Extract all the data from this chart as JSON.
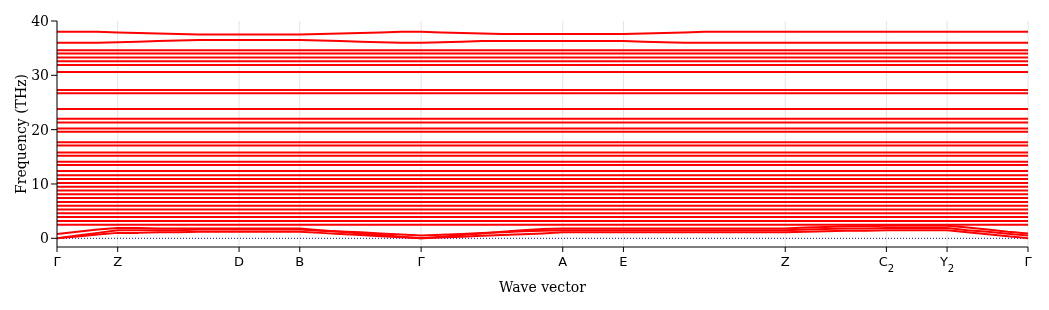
{
  "chart_data": {
    "type": "line",
    "xlabel": "Wave vector",
    "ylabel": "Frequency (THz)",
    "categories": [
      "Γ",
      null,
      null,
      "Z",
      null,
      null,
      null,
      null,
      null,
      "D",
      null,
      null,
      "B",
      null,
      null,
      null,
      null,
      null,
      "Γ",
      null,
      null,
      null,
      null,
      null,
      null,
      "A",
      null,
      null,
      "E",
      null,
      null,
      null,
      null,
      null,
      null,
      null,
      "Z",
      null,
      null,
      null,
      null,
      "C$_{2}$",
      null,
      null,
      "Y$_{2}$",
      null,
      null,
      null,
      "Γ"
    ],
    "ylim": [
      -1.6,
      40
    ],
    "yticks": [
      0,
      10,
      20,
      30,
      40
    ],
    "grid": "x",
    "marker": "none",
    "line_style": "solid",
    "ref_lines": [
      {
        "axis": "y",
        "value": 0,
        "color": "#0000ff",
        "line_style": "dotted"
      }
    ],
    "series": [
      {
        "color": "#ff0000",
        "values": [
          0,
          0.35,
          0.7,
          1.0,
          1.0,
          1.1,
          1.1,
          1.2,
          1.2,
          1.2,
          1.2,
          1.2,
          1.2,
          1.0,
          0.8,
          0.6,
          0.4,
          0.2,
          0,
          0.15,
          0.3,
          0.45,
          0.6,
          0.75,
          0.9,
          1.1,
          1.1,
          1.1,
          1.1,
          1.1,
          1.1,
          1.1,
          1.1,
          1.1,
          1.1,
          1.1,
          1.1,
          1.2,
          1.3,
          1.4,
          1.4,
          1.5,
          1.5,
          1.5,
          1.5,
          1.1,
          0.75,
          0.4,
          0
        ]
      },
      {
        "color": "#ff0000",
        "values": [
          0,
          0.5,
          1.0,
          1.5,
          1.5,
          1.5,
          1.5,
          1.6,
          1.6,
          1.6,
          1.6,
          1.6,
          1.6,
          1.4,
          1.25,
          1.1,
          0.9,
          0.7,
          0.5,
          0.65,
          0.8,
          1.0,
          1.1,
          1.3,
          1.4,
          1.5,
          1.5,
          1.5,
          1.5,
          1.5,
          1.5,
          1.5,
          1.5,
          1.5,
          1.5,
          1.5,
          1.5,
          1.6,
          1.7,
          1.8,
          1.8,
          1.9,
          1.9,
          1.9,
          1.9,
          1.5,
          1.2,
          0.85,
          0.5
        ]
      },
      {
        "color": "#ff0000",
        "values": [
          0.8,
          1.2,
          1.6,
          1.9,
          1.9,
          1.8,
          1.8,
          1.8,
          1.8,
          1.8,
          1.8,
          1.8,
          1.8,
          1.5,
          1.2,
          0.9,
          0.6,
          0.3,
          0,
          0.3,
          0.6,
          0.9,
          1.2,
          1.5,
          1.7,
          1.8,
          1.8,
          1.8,
          1.8,
          1.8,
          1.8,
          1.8,
          1.8,
          1.8,
          1.8,
          1.8,
          1.8,
          2.0,
          2.1,
          2.2,
          2.2,
          2.3,
          2.3,
          2.3,
          2.3,
          2.0,
          1.6,
          1.2,
          0.9
        ]
      },
      {
        "color": "#ff0000",
        "values": [
          2.5,
          2.5,
          2.5,
          2.5,
          2.5,
          2.5,
          2.5,
          2.5,
          2.5,
          2.5,
          2.5,
          2.5,
          2.5,
          2.5,
          2.5,
          2.5,
          2.5,
          2.5,
          2.5,
          2.5,
          2.5,
          2.5,
          2.5,
          2.5,
          2.5,
          2.5,
          2.5,
          2.5,
          2.5,
          2.5,
          2.5,
          2.5,
          2.5,
          2.5,
          2.5,
          2.5,
          2.5,
          2.5,
          2.5,
          2.5,
          2.5,
          2.5,
          2.5,
          2.5,
          2.5,
          2.5,
          2.5,
          2.5,
          2.5
        ]
      },
      {
        "color": "#ff0000",
        "values": [
          3.2,
          3.2,
          3.2,
          3.2,
          3.2,
          3.2,
          3.2,
          3.2,
          3.2,
          3.2,
          3.2,
          3.2,
          3.2,
          3.2,
          3.2,
          3.2,
          3.2,
          3.2,
          3.2,
          3.2,
          3.2,
          3.2,
          3.2,
          3.2,
          3.2,
          3.2,
          3.2,
          3.2,
          3.2,
          3.2,
          3.2,
          3.2,
          3.2,
          3.2,
          3.2,
          3.2,
          3.2,
          3.2,
          3.2,
          3.2,
          3.2,
          3.2,
          3.2,
          3.2,
          3.2,
          3.2,
          3.2,
          3.2,
          3.2
        ]
      },
      {
        "color": "#ff0000",
        "values": [
          3.9,
          3.9,
          3.9,
          3.9,
          3.9,
          3.9,
          3.9,
          3.9,
          3.9,
          3.9,
          3.9,
          3.9,
          3.9,
          3.9,
          3.9,
          3.9,
          3.9,
          3.9,
          3.9,
          3.9,
          3.9,
          3.9,
          3.9,
          3.9,
          3.9,
          3.9,
          3.9,
          3.9,
          3.9,
          3.9,
          3.9,
          3.9,
          3.9,
          3.9,
          3.9,
          3.9,
          3.9,
          3.9,
          3.9,
          3.9,
          3.9,
          3.9,
          3.9,
          3.9,
          3.9,
          3.9,
          3.9,
          3.9,
          3.9
        ]
      },
      {
        "color": "#ff0000",
        "values": [
          4.6,
          4.6,
          4.6,
          4.6,
          4.6,
          4.6,
          4.6,
          4.6,
          4.6,
          4.6,
          4.6,
          4.6,
          4.6,
          4.6,
          4.6,
          4.6,
          4.6,
          4.6,
          4.6,
          4.6,
          4.6,
          4.6,
          4.6,
          4.6,
          4.6,
          4.6,
          4.6,
          4.6,
          4.6,
          4.6,
          4.6,
          4.6,
          4.6,
          4.6,
          4.6,
          4.6,
          4.6,
          4.6,
          4.6,
          4.6,
          4.6,
          4.6,
          4.6,
          4.6,
          4.6,
          4.6,
          4.6,
          4.6,
          4.6
        ]
      },
      {
        "color": "#ff0000",
        "values": [
          5.3,
          5.3,
          5.3,
          5.3,
          5.3,
          5.3,
          5.3,
          5.3,
          5.3,
          5.3,
          5.3,
          5.3,
          5.3,
          5.3,
          5.3,
          5.3,
          5.3,
          5.3,
          5.3,
          5.3,
          5.3,
          5.3,
          5.3,
          5.3,
          5.3,
          5.3,
          5.3,
          5.3,
          5.3,
          5.3,
          5.3,
          5.3,
          5.3,
          5.3,
          5.3,
          5.3,
          5.3,
          5.3,
          5.3,
          5.3,
          5.3,
          5.3,
          5.3,
          5.3,
          5.3,
          5.3,
          5.3,
          5.3,
          5.3
        ]
      },
      {
        "color": "#ff0000",
        "values": [
          6.0,
          6.0,
          6.0,
          6.0,
          6.0,
          6.0,
          6.0,
          6.0,
          6.0,
          6.0,
          6.0,
          6.0,
          6.0,
          6.0,
          6.0,
          6.0,
          6.0,
          6.0,
          6.0,
          6.0,
          6.0,
          6.0,
          6.0,
          6.0,
          6.0,
          6.0,
          6.0,
          6.0,
          6.0,
          6.0,
          6.0,
          6.0,
          6.0,
          6.0,
          6.0,
          6.0,
          6.0,
          6.0,
          6.0,
          6.0,
          6.0,
          6.0,
          6.0,
          6.0,
          6.0,
          6.0,
          6.0,
          6.0,
          6.0
        ]
      },
      {
        "color": "#ff0000",
        "values": [
          6.7,
          6.7,
          6.7,
          6.7,
          6.7,
          6.7,
          6.7,
          6.7,
          6.7,
          6.7,
          6.7,
          6.7,
          6.7,
          6.7,
          6.7,
          6.7,
          6.7,
          6.7,
          6.7,
          6.7,
          6.7,
          6.7,
          6.7,
          6.7,
          6.7,
          6.7,
          6.7,
          6.7,
          6.7,
          6.7,
          6.7,
          6.7,
          6.7,
          6.7,
          6.7,
          6.7,
          6.7,
          6.7,
          6.7,
          6.7,
          6.7,
          6.7,
          6.7,
          6.7,
          6.7,
          6.7,
          6.7,
          6.7,
          6.7
        ]
      },
      {
        "color": "#ff0000",
        "values": [
          7.4,
          7.4,
          7.4,
          7.4,
          7.4,
          7.4,
          7.4,
          7.4,
          7.4,
          7.4,
          7.4,
          7.4,
          7.4,
          7.4,
          7.4,
          7.4,
          7.4,
          7.4,
          7.4,
          7.4,
          7.4,
          7.4,
          7.4,
          7.4,
          7.4,
          7.4,
          7.4,
          7.4,
          7.4,
          7.4,
          7.4,
          7.4,
          7.4,
          7.4,
          7.4,
          7.4,
          7.4,
          7.4,
          7.4,
          7.4,
          7.4,
          7.4,
          7.4,
          7.4,
          7.4,
          7.4,
          7.4,
          7.4,
          7.4
        ]
      },
      {
        "color": "#ff0000",
        "values": [
          8.1,
          8.1,
          8.1,
          8.1,
          8.1,
          8.1,
          8.1,
          8.1,
          8.1,
          8.1,
          8.1,
          8.1,
          8.1,
          8.1,
          8.1,
          8.1,
          8.1,
          8.1,
          8.1,
          8.1,
          8.1,
          8.1,
          8.1,
          8.1,
          8.1,
          8.1,
          8.1,
          8.1,
          8.1,
          8.1,
          8.1,
          8.1,
          8.1,
          8.1,
          8.1,
          8.1,
          8.1,
          8.1,
          8.1,
          8.1,
          8.1,
          8.1,
          8.1,
          8.1,
          8.1,
          8.1,
          8.1,
          8.1,
          8.1
        ]
      },
      {
        "color": "#ff0000",
        "values": [
          8.8,
          8.8,
          8.8,
          8.8,
          8.8,
          8.8,
          8.8,
          8.8,
          8.8,
          8.8,
          8.8,
          8.8,
          8.8,
          8.8,
          8.8,
          8.8,
          8.8,
          8.8,
          8.8,
          8.8,
          8.8,
          8.8,
          8.8,
          8.8,
          8.8,
          8.8,
          8.8,
          8.8,
          8.8,
          8.8,
          8.8,
          8.8,
          8.8,
          8.8,
          8.8,
          8.8,
          8.8,
          8.8,
          8.8,
          8.8,
          8.8,
          8.8,
          8.8,
          8.8,
          8.8,
          8.8,
          8.8,
          8.8,
          8.8
        ]
      },
      {
        "color": "#ff0000",
        "values": [
          9.5,
          9.5,
          9.5,
          9.5,
          9.5,
          9.5,
          9.5,
          9.5,
          9.5,
          9.5,
          9.5,
          9.5,
          9.5,
          9.5,
          9.5,
          9.5,
          9.5,
          9.5,
          9.5,
          9.5,
          9.5,
          9.5,
          9.5,
          9.5,
          9.5,
          9.5,
          9.5,
          9.5,
          9.5,
          9.5,
          9.5,
          9.5,
          9.5,
          9.5,
          9.5,
          9.5,
          9.5,
          9.5,
          9.5,
          9.5,
          9.5,
          9.5,
          9.5,
          9.5,
          9.5,
          9.5,
          9.5,
          9.5,
          9.5
        ]
      },
      {
        "color": "#ff0000",
        "values": [
          10.2,
          10.2,
          10.2,
          10.2,
          10.2,
          10.2,
          10.2,
          10.2,
          10.2,
          10.2,
          10.2,
          10.2,
          10.2,
          10.2,
          10.2,
          10.2,
          10.2,
          10.2,
          10.2,
          10.2,
          10.2,
          10.2,
          10.2,
          10.2,
          10.2,
          10.2,
          10.2,
          10.2,
          10.2,
          10.2,
          10.2,
          10.2,
          10.2,
          10.2,
          10.2,
          10.2,
          10.2,
          10.2,
          10.2,
          10.2,
          10.2,
          10.2,
          10.2,
          10.2,
          10.2,
          10.2,
          10.2,
          10.2,
          10.2
        ]
      },
      {
        "color": "#ff0000",
        "values": [
          10.9,
          10.9,
          10.9,
          10.9,
          10.9,
          10.9,
          10.9,
          10.9,
          10.9,
          10.9,
          10.9,
          10.9,
          10.9,
          10.9,
          10.9,
          10.9,
          10.9,
          10.9,
          10.9,
          10.9,
          10.9,
          10.9,
          10.9,
          10.9,
          10.9,
          10.9,
          10.9,
          10.9,
          10.9,
          10.9,
          10.9,
          10.9,
          10.9,
          10.9,
          10.9,
          10.9,
          10.9,
          10.9,
          10.9,
          10.9,
          10.9,
          10.9,
          10.9,
          10.9,
          10.9,
          10.9,
          10.9,
          10.9,
          10.9
        ]
      },
      {
        "color": "#ff0000",
        "values": [
          11.6,
          11.6,
          11.6,
          11.6,
          11.6,
          11.6,
          11.6,
          11.6,
          11.6,
          11.6,
          11.6,
          11.6,
          11.6,
          11.6,
          11.6,
          11.6,
          11.6,
          11.6,
          11.6,
          11.6,
          11.6,
          11.6,
          11.6,
          11.6,
          11.6,
          11.6,
          11.6,
          11.6,
          11.6,
          11.6,
          11.6,
          11.6,
          11.6,
          11.6,
          11.6,
          11.6,
          11.6,
          11.6,
          11.6,
          11.6,
          11.6,
          11.6,
          11.6,
          11.6,
          11.6,
          11.6,
          11.6,
          11.6,
          11.6
        ]
      },
      {
        "color": "#ff0000",
        "values": [
          12.4,
          12.4,
          12.4,
          12.4,
          12.4,
          12.4,
          12.4,
          12.4,
          12.4,
          12.4,
          12.4,
          12.4,
          12.4,
          12.4,
          12.4,
          12.4,
          12.4,
          12.4,
          12.4,
          12.4,
          12.4,
          12.4,
          12.4,
          12.4,
          12.4,
          12.4,
          12.4,
          12.4,
          12.4,
          12.4,
          12.4,
          12.4,
          12.4,
          12.4,
          12.4,
          12.4,
          12.4,
          12.4,
          12.4,
          12.4,
          12.4,
          12.4,
          12.4,
          12.4,
          12.4,
          12.4,
          12.4,
          12.4,
          12.4
        ]
      },
      {
        "color": "#ff0000",
        "values": [
          13.5,
          13.5,
          13.5,
          13.5,
          13.5,
          13.5,
          13.5,
          13.5,
          13.5,
          13.5,
          13.5,
          13.5,
          13.5,
          13.5,
          13.5,
          13.5,
          13.5,
          13.5,
          13.5,
          13.5,
          13.5,
          13.5,
          13.5,
          13.5,
          13.5,
          13.5,
          13.5,
          13.5,
          13.5,
          13.5,
          13.5,
          13.5,
          13.5,
          13.5,
          13.5,
          13.5,
          13.5,
          13.5,
          13.5,
          13.5,
          13.5,
          13.5,
          13.5,
          13.5,
          13.5,
          13.5,
          13.5,
          13.5,
          13.5
        ]
      },
      {
        "color": "#ff0000",
        "values": [
          14.1,
          14.1,
          14.1,
          14.1,
          14.1,
          14.1,
          14.1,
          14.1,
          14.1,
          14.1,
          14.1,
          14.1,
          14.1,
          14.1,
          14.1,
          14.1,
          14.1,
          14.1,
          14.1,
          14.1,
          14.1,
          14.1,
          14.1,
          14.1,
          14.1,
          14.1,
          14.1,
          14.1,
          14.1,
          14.1,
          14.1,
          14.1,
          14.1,
          14.1,
          14.1,
          14.1,
          14.1,
          14.1,
          14.1,
          14.1,
          14.1,
          14.1,
          14.1,
          14.1,
          14.1,
          14.1,
          14.1,
          14.1,
          14.1
        ]
      },
      {
        "color": "#ff0000",
        "values": [
          15.2,
          15.2,
          15.2,
          15.2,
          15.2,
          15.2,
          15.2,
          15.2,
          15.2,
          15.2,
          15.2,
          15.2,
          15.2,
          15.2,
          15.2,
          15.2,
          15.2,
          15.2,
          15.2,
          15.2,
          15.2,
          15.2,
          15.2,
          15.2,
          15.2,
          15.2,
          15.2,
          15.2,
          15.2,
          15.2,
          15.2,
          15.2,
          15.2,
          15.2,
          15.2,
          15.2,
          15.2,
          15.2,
          15.2,
          15.2,
          15.2,
          15.2,
          15.2,
          15.2,
          15.2,
          15.2,
          15.2,
          15.2,
          15.2
        ]
      },
      {
        "color": "#ff0000",
        "values": [
          15.8,
          15.8,
          15.8,
          15.8,
          15.8,
          15.8,
          15.8,
          15.8,
          15.8,
          15.8,
          15.8,
          15.8,
          15.8,
          15.8,
          15.8,
          15.8,
          15.8,
          15.8,
          15.8,
          15.8,
          15.8,
          15.8,
          15.8,
          15.8,
          15.8,
          15.8,
          15.8,
          15.8,
          15.8,
          15.8,
          15.8,
          15.8,
          15.8,
          15.8,
          15.8,
          15.8,
          15.8,
          15.8,
          15.8,
          15.8,
          15.8,
          15.8,
          15.8,
          15.8,
          15.8,
          15.8,
          15.8,
          15.8,
          15.8
        ]
      },
      {
        "color": "#ff0000",
        "values": [
          17.1,
          17.1,
          17.1,
          17.1,
          17.1,
          17.1,
          17.1,
          17.1,
          17.1,
          17.1,
          17.1,
          17.1,
          17.1,
          17.1,
          17.1,
          17.1,
          17.1,
          17.1,
          17.1,
          17.1,
          17.1,
          17.1,
          17.1,
          17.1,
          17.1,
          17.1,
          17.1,
          17.1,
          17.1,
          17.1,
          17.1,
          17.1,
          17.1,
          17.1,
          17.1,
          17.1,
          17.1,
          17.1,
          17.1,
          17.1,
          17.1,
          17.1,
          17.1,
          17.1,
          17.1,
          17.1,
          17.1,
          17.1,
          17.1
        ]
      },
      {
        "color": "#ff0000",
        "values": [
          17.7,
          17.7,
          17.7,
          17.7,
          17.7,
          17.7,
          17.7,
          17.7,
          17.7,
          17.7,
          17.7,
          17.7,
          17.7,
          17.7,
          17.7,
          17.7,
          17.7,
          17.7,
          17.7,
          17.7,
          17.7,
          17.7,
          17.7,
          17.7,
          17.7,
          17.7,
          17.7,
          17.7,
          17.7,
          17.7,
          17.7,
          17.7,
          17.7,
          17.7,
          17.7,
          17.7,
          17.7,
          17.7,
          17.7,
          17.7,
          17.7,
          17.7,
          17.7,
          17.7,
          17.7,
          17.7,
          17.7,
          17.7,
          17.7
        ]
      },
      {
        "color": "#ff0000",
        "values": [
          19.6,
          19.6,
          19.6,
          19.6,
          19.6,
          19.6,
          19.6,
          19.6,
          19.6,
          19.6,
          19.6,
          19.6,
          19.6,
          19.6,
          19.6,
          19.6,
          19.6,
          19.6,
          19.6,
          19.6,
          19.6,
          19.6,
          19.6,
          19.6,
          19.6,
          19.6,
          19.6,
          19.6,
          19.6,
          19.6,
          19.6,
          19.6,
          19.6,
          19.6,
          19.6,
          19.6,
          19.6,
          19.6,
          19.6,
          19.6,
          19.6,
          19.6,
          19.6,
          19.6,
          19.6,
          19.6,
          19.6,
          19.6,
          19.6
        ]
      },
      {
        "color": "#ff0000",
        "values": [
          20.2,
          20.2,
          20.2,
          20.2,
          20.2,
          20.2,
          20.2,
          20.2,
          20.2,
          20.2,
          20.2,
          20.2,
          20.2,
          20.2,
          20.2,
          20.2,
          20.2,
          20.2,
          20.2,
          20.2,
          20.2,
          20.2,
          20.2,
          20.2,
          20.2,
          20.2,
          20.2,
          20.2,
          20.2,
          20.2,
          20.2,
          20.2,
          20.2,
          20.2,
          20.2,
          20.2,
          20.2,
          20.2,
          20.2,
          20.2,
          20.2,
          20.2,
          20.2,
          20.2,
          20.2,
          20.2,
          20.2,
          20.2,
          20.2
        ]
      },
      {
        "color": "#ff0000",
        "values": [
          21.3,
          21.3,
          21.3,
          21.3,
          21.3,
          21.3,
          21.3,
          21.3,
          21.3,
          21.3,
          21.3,
          21.3,
          21.3,
          21.3,
          21.3,
          21.3,
          21.3,
          21.3,
          21.3,
          21.3,
          21.3,
          21.3,
          21.3,
          21.3,
          21.3,
          21.3,
          21.3,
          21.3,
          21.3,
          21.3,
          21.3,
          21.3,
          21.3,
          21.3,
          21.3,
          21.3,
          21.3,
          21.3,
          21.3,
          21.3,
          21.3,
          21.3,
          21.3,
          21.3,
          21.3,
          21.3,
          21.3,
          21.3,
          21.3
        ]
      },
      {
        "color": "#ff0000",
        "values": [
          22.0,
          22.0,
          22.0,
          22.0,
          22.0,
          22.0,
          22.0,
          22.0,
          22.0,
          22.0,
          22.0,
          22.0,
          22.0,
          22.0,
          22.0,
          22.0,
          22.0,
          22.0,
          22.0,
          22.0,
          22.0,
          22.0,
          22.0,
          22.0,
          22.0,
          22.0,
          22.0,
          22.0,
          22.0,
          22.0,
          22.0,
          22.0,
          22.0,
          22.0,
          22.0,
          22.0,
          22.0,
          22.0,
          22.0,
          22.0,
          22.0,
          22.0,
          22.0,
          22.0,
          22.0,
          22.0,
          22.0,
          22.0,
          22.0
        ]
      },
      {
        "color": "#ff0000",
        "values": [
          23.8,
          23.8,
          23.8,
          23.8,
          23.8,
          23.8,
          23.8,
          23.8,
          23.8,
          23.8,
          23.8,
          23.8,
          23.8,
          23.8,
          23.8,
          23.8,
          23.8,
          23.8,
          23.8,
          23.8,
          23.8,
          23.8,
          23.8,
          23.8,
          23.8,
          23.8,
          23.8,
          23.8,
          23.8,
          23.8,
          23.8,
          23.8,
          23.8,
          23.8,
          23.8,
          23.8,
          23.8,
          23.8,
          23.8,
          23.8,
          23.8,
          23.8,
          23.8,
          23.8,
          23.8,
          23.8,
          23.8,
          23.8,
          23.8
        ]
      },
      {
        "color": "#ff0000",
        "values": [
          26.7,
          26.7,
          26.7,
          26.7,
          26.7,
          26.7,
          26.7,
          26.7,
          26.7,
          26.7,
          26.7,
          26.7,
          26.7,
          26.7,
          26.7,
          26.7,
          26.7,
          26.7,
          26.7,
          26.7,
          26.7,
          26.7,
          26.7,
          26.7,
          26.7,
          26.7,
          26.7,
          26.7,
          26.7,
          26.7,
          26.7,
          26.7,
          26.7,
          26.7,
          26.7,
          26.7,
          26.7,
          26.7,
          26.7,
          26.7,
          26.7,
          26.7,
          26.7,
          26.7,
          26.7,
          26.7,
          26.7,
          26.7,
          26.7
        ]
      },
      {
        "color": "#ff0000",
        "values": [
          27.3,
          27.3,
          27.3,
          27.3,
          27.3,
          27.3,
          27.3,
          27.3,
          27.3,
          27.3,
          27.3,
          27.3,
          27.3,
          27.3,
          27.3,
          27.3,
          27.3,
          27.3,
          27.3,
          27.3,
          27.3,
          27.3,
          27.3,
          27.3,
          27.3,
          27.3,
          27.3,
          27.3,
          27.3,
          27.3,
          27.3,
          27.3,
          27.3,
          27.3,
          27.3,
          27.3,
          27.3,
          27.3,
          27.3,
          27.3,
          27.3,
          27.3,
          27.3,
          27.3,
          27.3,
          27.3,
          27.3,
          27.3,
          27.3
        ]
      },
      {
        "color": "#ff0000",
        "values": [
          30.6,
          30.6,
          30.6,
          30.6,
          30.6,
          30.6,
          30.6,
          30.6,
          30.6,
          30.6,
          30.6,
          30.6,
          30.6,
          30.6,
          30.6,
          30.6,
          30.6,
          30.6,
          30.6,
          30.6,
          30.6,
          30.6,
          30.6,
          30.6,
          30.6,
          30.6,
          30.6,
          30.6,
          30.6,
          30.6,
          30.6,
          30.6,
          30.6,
          30.6,
          30.6,
          30.6,
          30.6,
          30.6,
          30.6,
          30.6,
          30.6,
          30.6,
          30.6,
          30.6,
          30.6,
          30.6,
          30.6,
          30.6,
          30.6
        ]
      },
      {
        "color": "#ff0000",
        "values": [
          31.9,
          31.9,
          31.9,
          31.9,
          31.9,
          31.9,
          31.9,
          31.9,
          31.9,
          31.9,
          31.9,
          31.9,
          31.9,
          31.9,
          31.9,
          31.9,
          31.9,
          31.9,
          31.9,
          31.9,
          31.9,
          31.9,
          31.9,
          31.9,
          31.9,
          31.9,
          31.9,
          31.9,
          31.9,
          31.9,
          31.9,
          31.9,
          31.9,
          31.9,
          31.9,
          31.9,
          31.9,
          31.9,
          31.9,
          31.9,
          31.9,
          31.9,
          31.9,
          31.9,
          31.9,
          31.9,
          31.9,
          31.9,
          31.9
        ]
      },
      {
        "color": "#ff0000",
        "values": [
          32.6,
          32.6,
          32.6,
          32.6,
          32.6,
          32.6,
          32.6,
          32.6,
          32.6,
          32.6,
          32.6,
          32.6,
          32.6,
          32.6,
          32.6,
          32.6,
          32.6,
          32.6,
          32.6,
          32.6,
          32.6,
          32.6,
          32.6,
          32.6,
          32.6,
          32.6,
          32.6,
          32.6,
          32.6,
          32.6,
          32.6,
          32.6,
          32.6,
          32.6,
          32.6,
          32.6,
          32.6,
          32.6,
          32.6,
          32.6,
          32.6,
          32.6,
          32.6,
          32.6,
          32.6,
          32.6,
          32.6,
          32.6,
          32.6
        ]
      },
      {
        "color": "#ff0000",
        "values": [
          33.3,
          33.3,
          33.3,
          33.3,
          33.3,
          33.3,
          33.3,
          33.3,
          33.3,
          33.3,
          33.3,
          33.3,
          33.3,
          33.3,
          33.3,
          33.3,
          33.3,
          33.3,
          33.3,
          33.3,
          33.3,
          33.3,
          33.3,
          33.3,
          33.3,
          33.3,
          33.3,
          33.3,
          33.3,
          33.3,
          33.3,
          33.3,
          33.3,
          33.3,
          33.3,
          33.3,
          33.3,
          33.3,
          33.3,
          33.3,
          33.3,
          33.3,
          33.3,
          33.3,
          33.3,
          33.3,
          33.3,
          33.3,
          33.3
        ]
      },
      {
        "color": "#ff0000",
        "values": [
          34.0,
          34.0,
          34.0,
          34.0,
          34.0,
          34.0,
          34.0,
          34.0,
          34.0,
          34.0,
          34.0,
          34.0,
          34.0,
          34.0,
          34.0,
          34.0,
          34.0,
          34.0,
          34.0,
          34.0,
          34.0,
          34.0,
          34.0,
          34.0,
          34.0,
          34.0,
          34.0,
          34.0,
          34.0,
          34.0,
          34.0,
          34.0,
          34.0,
          34.0,
          34.0,
          34.0,
          34.0,
          34.0,
          34.0,
          34.0,
          34.0,
          34.0,
          34.0,
          34.0,
          34.0,
          34.0,
          34.0,
          34.0,
          34.0
        ]
      },
      {
        "color": "#ff0000",
        "values": [
          34.6,
          34.6,
          34.6,
          34.6,
          34.6,
          34.6,
          34.6,
          34.6,
          34.6,
          34.6,
          34.6,
          34.6,
          34.6,
          34.6,
          34.6,
          34.6,
          34.6,
          34.6,
          34.6,
          34.6,
          34.6,
          34.6,
          34.6,
          34.6,
          34.6,
          34.6,
          34.6,
          34.6,
          34.6,
          34.6,
          34.6,
          34.6,
          34.6,
          34.6,
          34.6,
          34.6,
          34.6,
          34.6,
          34.6,
          34.6,
          34.6,
          34.6,
          34.6,
          34.6,
          34.6,
          34.6,
          34.6,
          34.6,
          34.6
        ]
      },
      {
        "color": "#ff0000",
        "values": [
          36.0,
          36.0,
          36.0,
          36.1,
          36.2,
          36.3,
          36.4,
          36.5,
          36.5,
          36.5,
          36.5,
          36.5,
          36.5,
          36.4,
          36.3,
          36.2,
          36.1,
          36.0,
          36.0,
          36.1,
          36.2,
          36.3,
          36.3,
          36.3,
          36.3,
          36.3,
          36.3,
          36.3,
          36.3,
          36.2,
          36.1,
          36.0,
          36.0,
          36.0,
          36.0,
          36.0,
          36.0,
          36.0,
          36.0,
          36.0,
          36.0,
          36.0,
          36.0,
          36.0,
          36.0,
          36.0,
          36.0,
          36.0,
          36.0
        ]
      },
      {
        "color": "#ff0000",
        "values": [
          38.0,
          38.0,
          38.0,
          37.9,
          37.8,
          37.7,
          37.6,
          37.5,
          37.5,
          37.5,
          37.5,
          37.5,
          37.5,
          37.6,
          37.7,
          37.8,
          37.9,
          38.0,
          38.0,
          37.9,
          37.8,
          37.7,
          37.6,
          37.6,
          37.6,
          37.6,
          37.6,
          37.6,
          37.6,
          37.7,
          37.8,
          37.9,
          38.0,
          38.0,
          38.0,
          38.0,
          38.0,
          38.0,
          38.0,
          38.0,
          38.0,
          38.0,
          38.0,
          38.0,
          38.0,
          38.0,
          38.0,
          38.0,
          38.0
        ]
      }
    ]
  }
}
